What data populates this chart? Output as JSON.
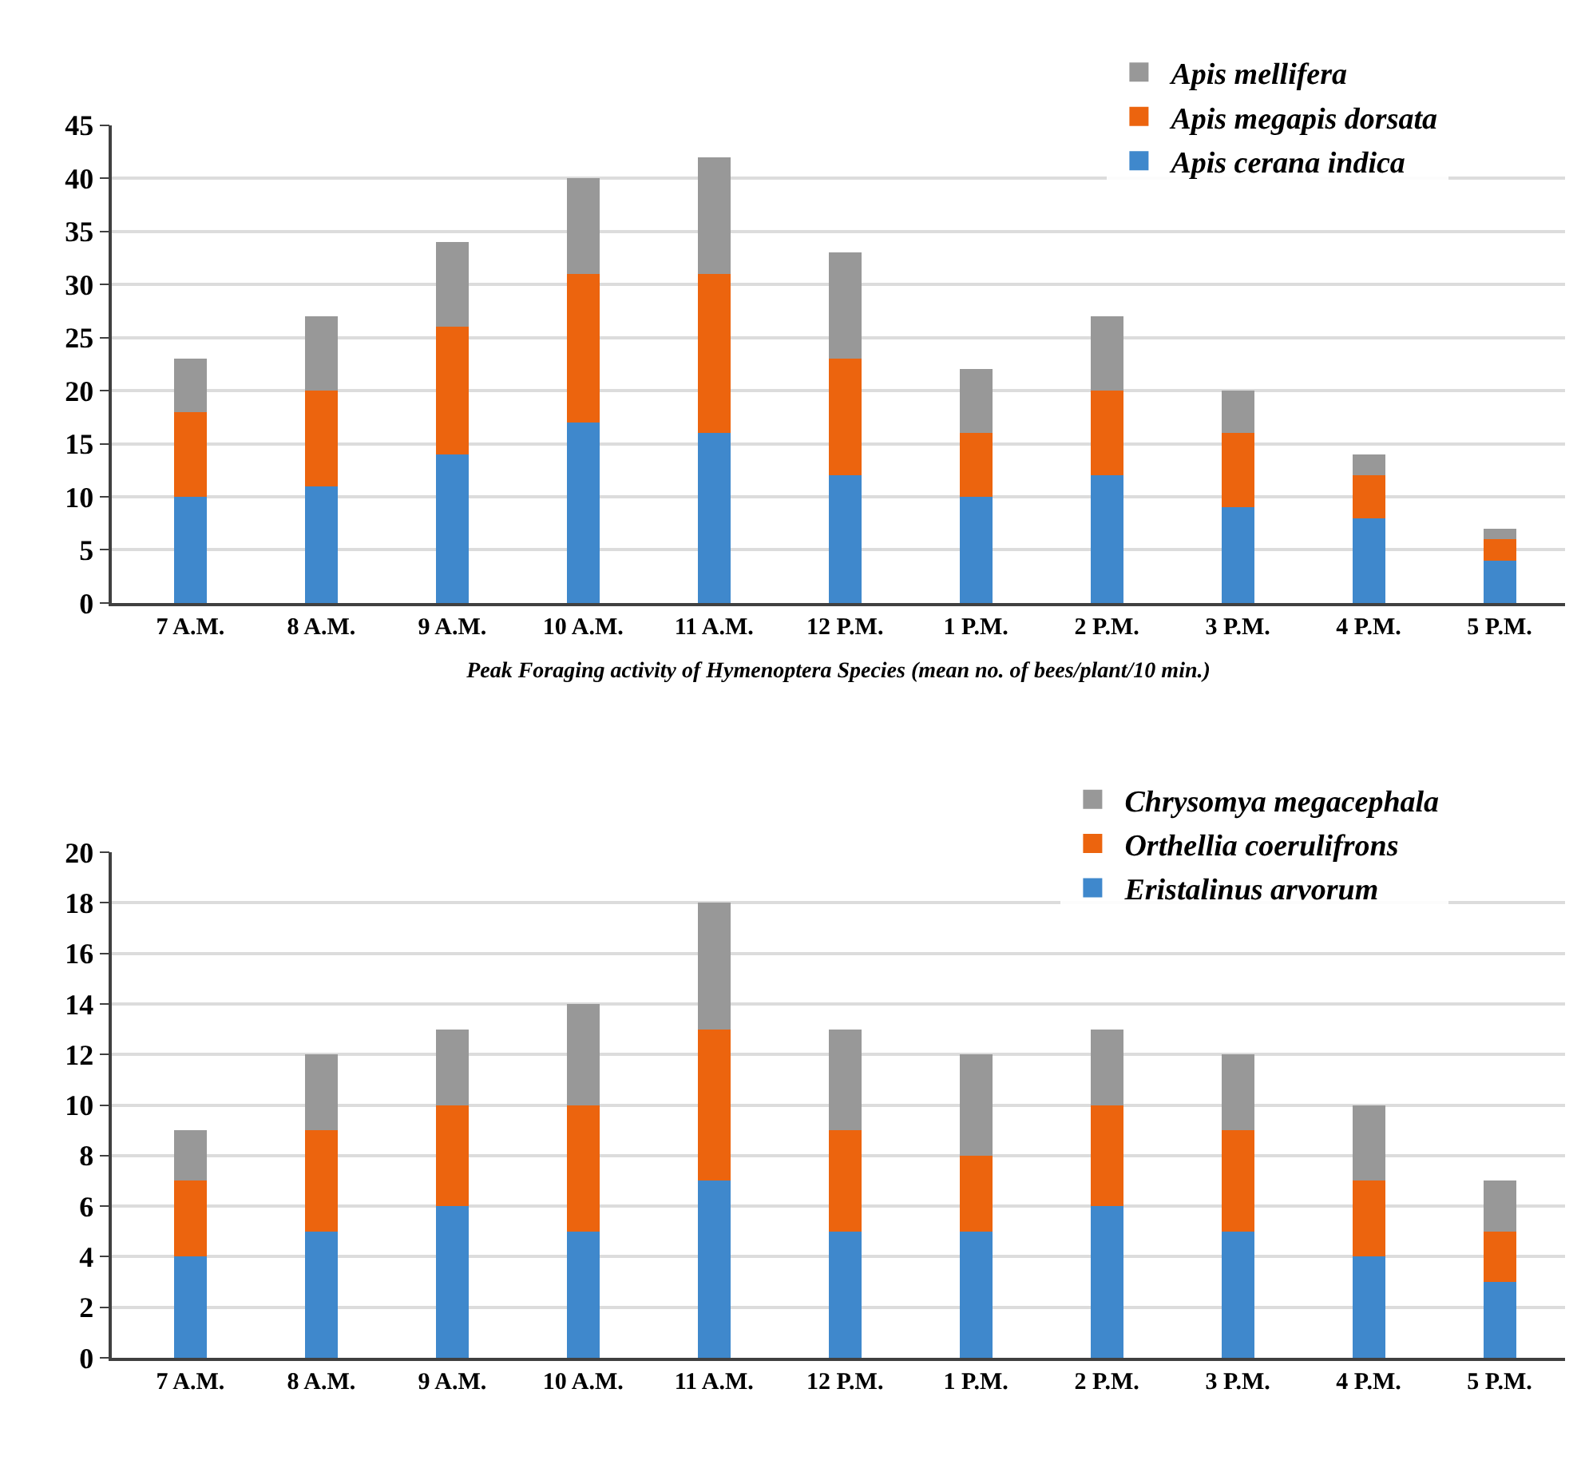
{
  "chart_data": [
    {
      "type": "bar",
      "stacked": true,
      "xlabel": "Peak Foraging activity of Hymenoptera Species (mean no. of bees/plant/10 min.)",
      "categories": [
        "7 A.M.",
        "8 A.M.",
        "9 A.M.",
        "10 A.M.",
        "11 A.M.",
        "12 P.M.",
        "1 P.M.",
        "2 P.M.",
        "3 P.M.",
        "4 P.M.",
        "5 P.M."
      ],
      "series": [
        {
          "name": "Apis cerana indica",
          "color": "#3f88cc",
          "values": [
            10,
            11,
            14,
            17,
            16,
            12,
            10,
            12,
            9,
            8,
            4
          ]
        },
        {
          "name": "Apis megapis dorsata",
          "color": "#ec640e",
          "values": [
            8,
            9,
            12,
            14,
            15,
            11,
            6,
            8,
            7,
            4,
            2
          ]
        },
        {
          "name": "Apis mellifera",
          "color": "#989898",
          "values": [
            5,
            7,
            8,
            9,
            11,
            10,
            6,
            7,
            4,
            2,
            1
          ]
        }
      ],
      "ylim": [
        0,
        45
      ],
      "yticks": [
        0,
        5,
        10,
        15,
        20,
        25,
        30,
        35,
        40,
        45
      ],
      "grid": "y",
      "legend": "top right"
    },
    {
      "type": "bar",
      "stacked": true,
      "categories": [
        "7 A.M.",
        "8 A.M.",
        "9 A.M.",
        "10 A.M.",
        "11 A.M.",
        "12 P.M.",
        "1 P.M.",
        "2 P.M.",
        "3 P.M.",
        "4 P.M.",
        "5 P.M."
      ],
      "series": [
        {
          "name": "Eristalinus arvorum",
          "color": "#3f88cc",
          "values": [
            4,
            5,
            6,
            5,
            7,
            5,
            5,
            6,
            5,
            4,
            3
          ]
        },
        {
          "name": "Orthellia coerulifrons",
          "color": "#ec640e",
          "values": [
            3,
            4,
            4,
            5,
            6,
            4,
            3,
            4,
            4,
            3,
            2
          ]
        },
        {
          "name": "Chrysomya megacephala",
          "color": "#989898",
          "values": [
            2,
            3,
            3,
            4,
            5,
            4,
            4,
            3,
            3,
            3,
            2
          ]
        }
      ],
      "ylim": [
        0,
        20
      ],
      "yticks": [
        0,
        2,
        4,
        6,
        8,
        10,
        12,
        14,
        16,
        18,
        20
      ],
      "grid": "y",
      "legend": "top right"
    }
  ]
}
